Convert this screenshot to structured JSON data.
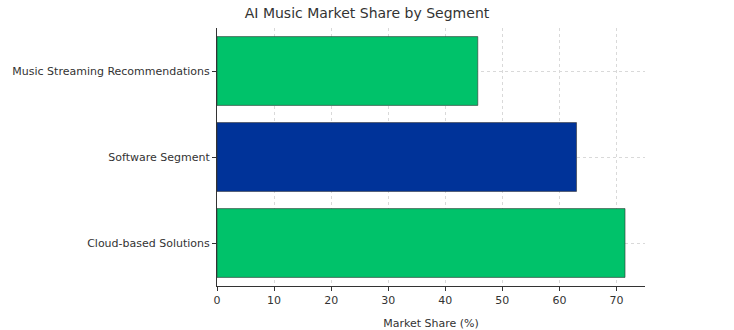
{
  "chart_data": {
    "type": "bar",
    "orientation": "horizontal",
    "title": "AI Music Market Share by Segment",
    "x_label": "Market Share (%)",
    "categories": [
      "Cloud-based Solutions",
      "Software Segment",
      "Music Streaming Recommendations"
    ],
    "values": [
      71.5,
      63,
      45.7
    ],
    "colors": [
      "#00c26a",
      "#003399",
      "#00c26a"
    ],
    "xlim": [
      0,
      75
    ],
    "xticks": [
      0,
      10,
      20,
      30,
      40,
      50,
      60,
      70
    ],
    "grid": true
  }
}
